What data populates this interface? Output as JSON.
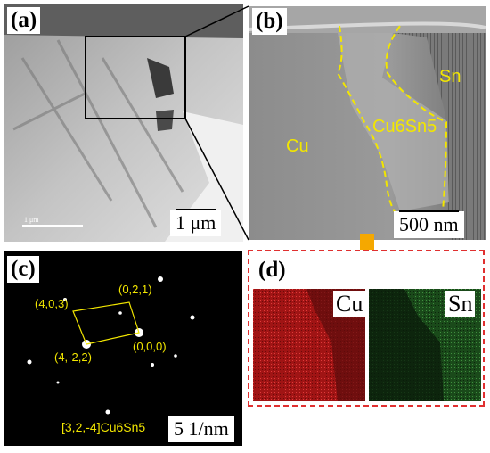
{
  "figure": {
    "panel_a": {
      "tag": "(a)",
      "scale_bar": "1 μm",
      "inner_scale": "1 μm"
    },
    "panel_b": {
      "tag": "(b)",
      "scale_bar": "500 nm",
      "labels": {
        "cu": "Cu",
        "imc": "Cu6Sn5",
        "sn": "Sn"
      }
    },
    "panel_c": {
      "tag": "(c)",
      "scale_bar": "5 1/nm",
      "zone_axis": "[3,2,-4]Cu6Sn5",
      "spots": [
        "(4,0,3)",
        "(0,2,1)",
        "(4,-2,2)",
        "(0,0,0)"
      ]
    },
    "panel_d": {
      "tag": "(d)",
      "map_cu": "Cu",
      "map_sn": "Sn"
    },
    "colors": {
      "annotation_yellow": "#f2e600",
      "arrow_orange": "#f5a800",
      "box_red": "#e03030",
      "cu_map": "#b01818",
      "sn_map": "#1a5a1a"
    }
  }
}
